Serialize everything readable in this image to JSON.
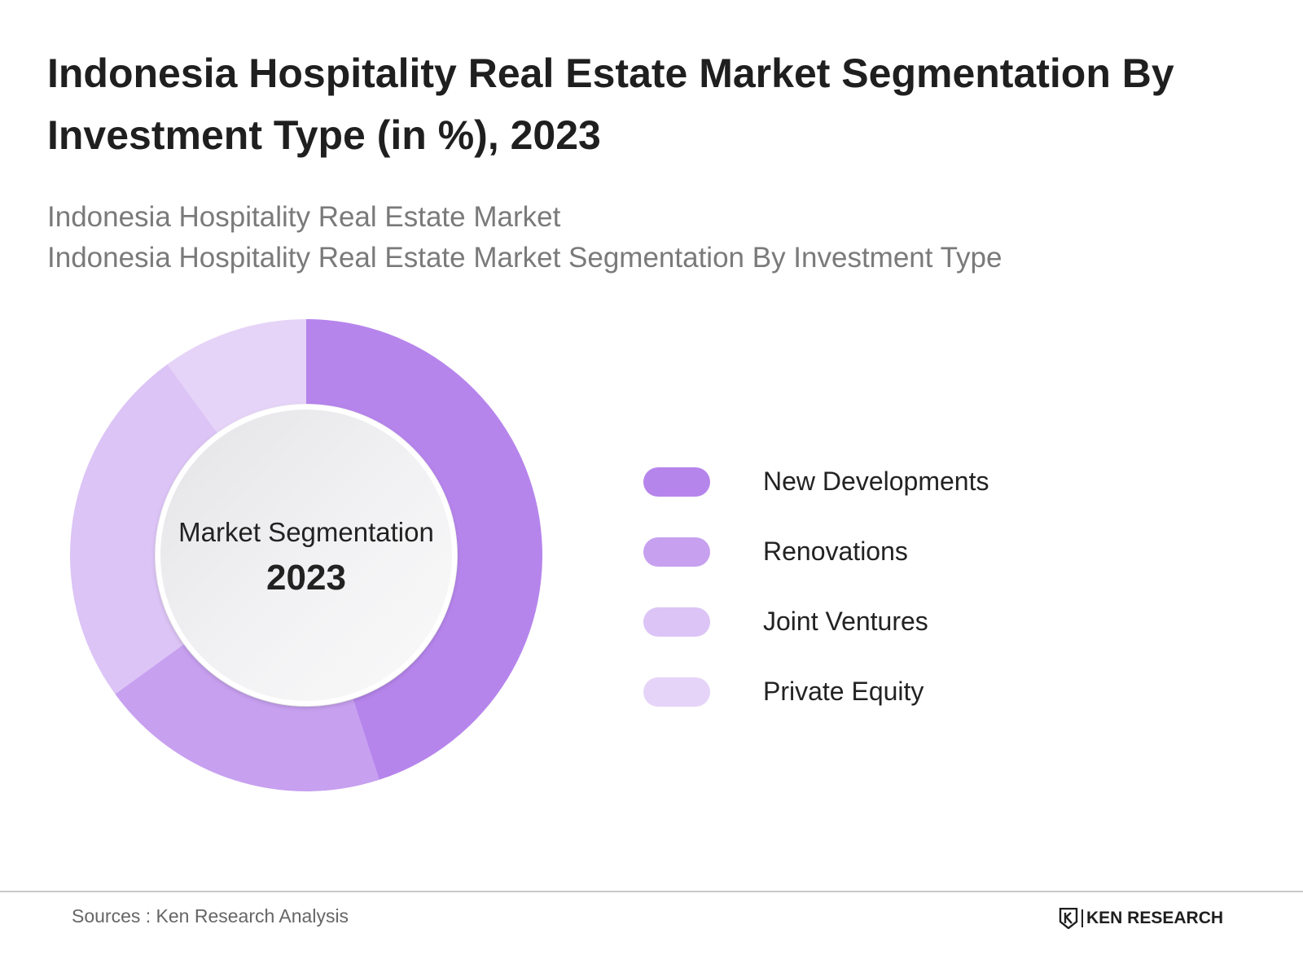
{
  "title": "Indonesia Hospitality Real Estate Market Segmentation By Investment Type (in %), 2023",
  "subtitles": [
    "Indonesia Hospitality Real Estate Market",
    "Indonesia Hospitality Real Estate Market Segmentation By Investment Type"
  ],
  "chart_data": {
    "type": "pie",
    "style": "donut",
    "center_label": "Market Segmentation",
    "center_year": "2023",
    "categories": [
      "New Developments",
      "Renovations",
      "Joint Ventures",
      "Private Equity"
    ],
    "values": [
      45,
      20,
      25,
      10
    ],
    "colors": [
      "#b685ec",
      "#c7a0f0",
      "#dcc4f6",
      "#e6d4f8"
    ],
    "legend_position": "right"
  },
  "legend": {
    "items": [
      {
        "label": "New Developments",
        "color": "#b685ec"
      },
      {
        "label": "Renovations",
        "color": "#c7a0f0"
      },
      {
        "label": "Joint Ventures",
        "color": "#dcc4f6"
      },
      {
        "label": "Private Equity",
        "color": "#e6d4f8"
      }
    ]
  },
  "footer": {
    "source": "Sources : Ken Research Analysis",
    "brand": "KEN RESEARCH"
  }
}
